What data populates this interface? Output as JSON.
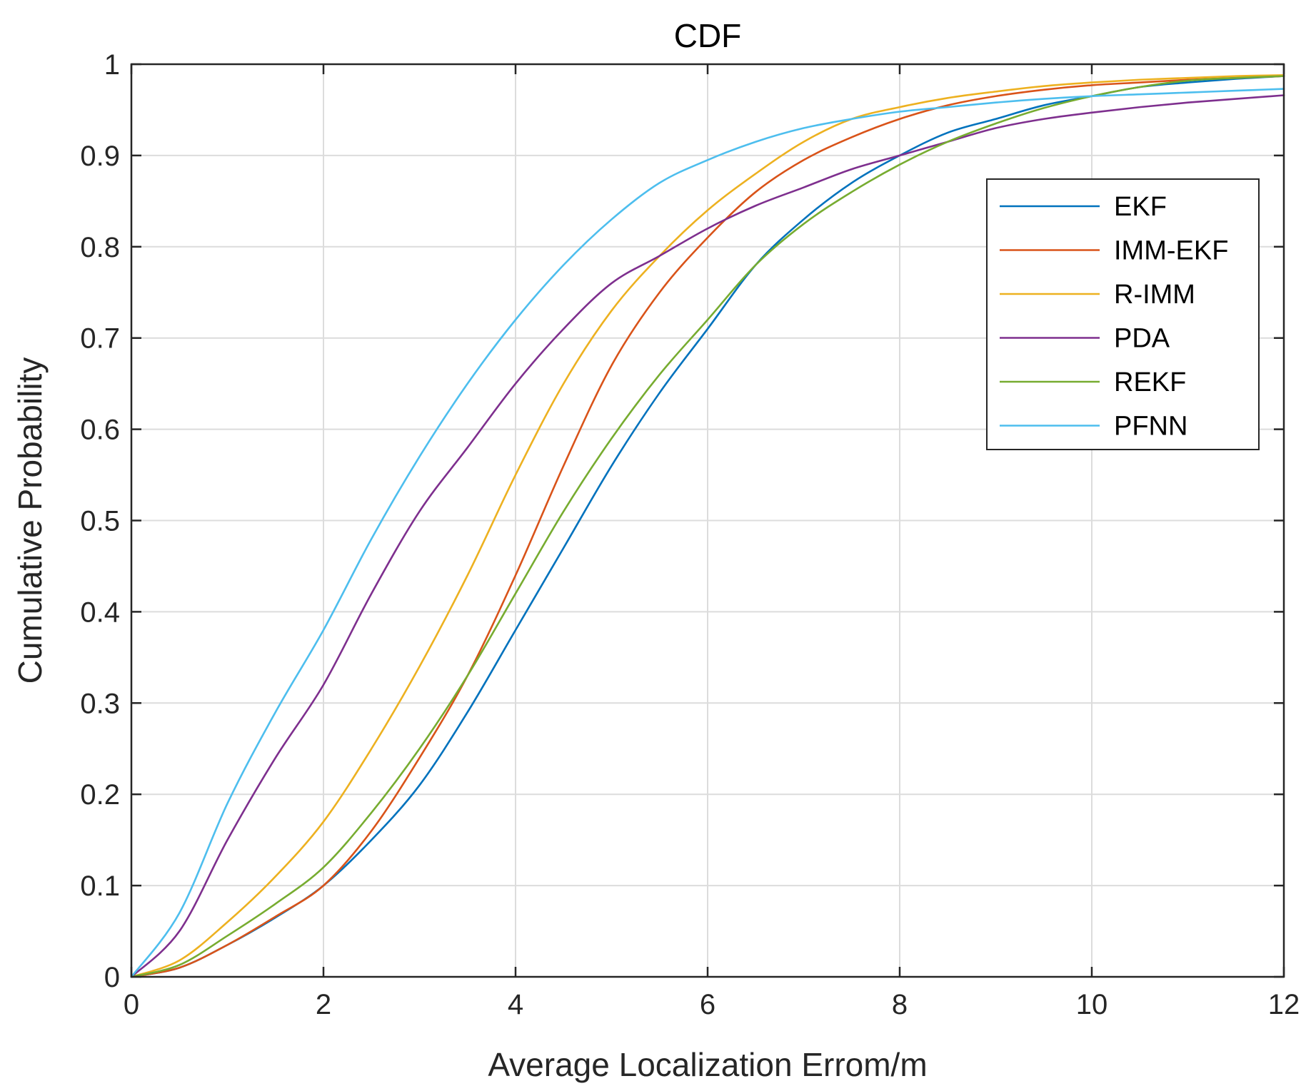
{
  "chart_data": {
    "type": "line",
    "title": "CDF",
    "xlabel": "Average Localization Errom/m",
    "ylabel": "Cumulative Probability",
    "xlim": [
      0,
      12
    ],
    "ylim": [
      0,
      1
    ],
    "xticks": [
      0,
      2,
      4,
      6,
      8,
      10,
      12
    ],
    "xtick_labels": [
      "0",
      "2",
      "4",
      "6",
      "8",
      "10",
      "12"
    ],
    "yticks": [
      0,
      0.1,
      0.2,
      0.3,
      0.4,
      0.5,
      0.6,
      0.7,
      0.8,
      0.9,
      1
    ],
    "ytick_labels": [
      "0",
      "0.1",
      "0.2",
      "0.3",
      "0.4",
      "0.5",
      "0.6",
      "0.7",
      "0.8",
      "0.9",
      "1"
    ],
    "grid": true,
    "legend_position": "top-right",
    "x": [
      0,
      0.5,
      1,
      1.5,
      2,
      2.5,
      3,
      3.5,
      4,
      4.5,
      5,
      5.5,
      6,
      6.5,
      7,
      7.5,
      8,
      8.5,
      9,
      9.5,
      10,
      10.5,
      11,
      11.5,
      12
    ],
    "series": [
      {
        "name": "EKF",
        "color": "#0072BD",
        "values": [
          0,
          0.01,
          0.035,
          0.065,
          0.1,
          0.15,
          0.21,
          0.29,
          0.38,
          0.47,
          0.56,
          0.64,
          0.71,
          0.78,
          0.83,
          0.87,
          0.9,
          0.925,
          0.94,
          0.955,
          0.965,
          0.975,
          0.98,
          0.984,
          0.987
        ]
      },
      {
        "name": "IMM-EKF",
        "color": "#D95319",
        "values": [
          0,
          0.01,
          0.035,
          0.066,
          0.1,
          0.16,
          0.24,
          0.33,
          0.44,
          0.56,
          0.67,
          0.75,
          0.81,
          0.86,
          0.895,
          0.92,
          0.94,
          0.955,
          0.965,
          0.972,
          0.977,
          0.98,
          0.983,
          0.985,
          0.987
        ]
      },
      {
        "name": "R-IMM",
        "color": "#EDB120",
        "values": [
          0,
          0.018,
          0.06,
          0.11,
          0.17,
          0.25,
          0.34,
          0.44,
          0.55,
          0.65,
          0.73,
          0.79,
          0.84,
          0.88,
          0.915,
          0.94,
          0.953,
          0.963,
          0.97,
          0.976,
          0.98,
          0.983,
          0.985,
          0.987,
          0.988
        ]
      },
      {
        "name": "PDA",
        "color": "#7E2F8E",
        "values": [
          0,
          0.05,
          0.15,
          0.24,
          0.32,
          0.42,
          0.51,
          0.58,
          0.65,
          0.71,
          0.76,
          0.79,
          0.82,
          0.845,
          0.865,
          0.885,
          0.9,
          0.915,
          0.93,
          0.94,
          0.947,
          0.953,
          0.958,
          0.962,
          0.966
        ]
      },
      {
        "name": "REKF",
        "color": "#77AC30",
        "values": [
          0,
          0.013,
          0.045,
          0.08,
          0.12,
          0.18,
          0.25,
          0.33,
          0.42,
          0.51,
          0.59,
          0.66,
          0.72,
          0.78,
          0.825,
          0.86,
          0.89,
          0.915,
          0.935,
          0.952,
          0.965,
          0.975,
          0.982,
          0.985,
          0.987
        ]
      },
      {
        "name": "PFNN",
        "color": "#4DBEEE",
        "values": [
          0,
          0.07,
          0.19,
          0.29,
          0.38,
          0.48,
          0.57,
          0.65,
          0.72,
          0.78,
          0.83,
          0.87,
          0.895,
          0.915,
          0.93,
          0.94,
          0.948,
          0.953,
          0.958,
          0.962,
          0.965,
          0.967,
          0.969,
          0.971,
          0.973
        ]
      }
    ]
  }
}
